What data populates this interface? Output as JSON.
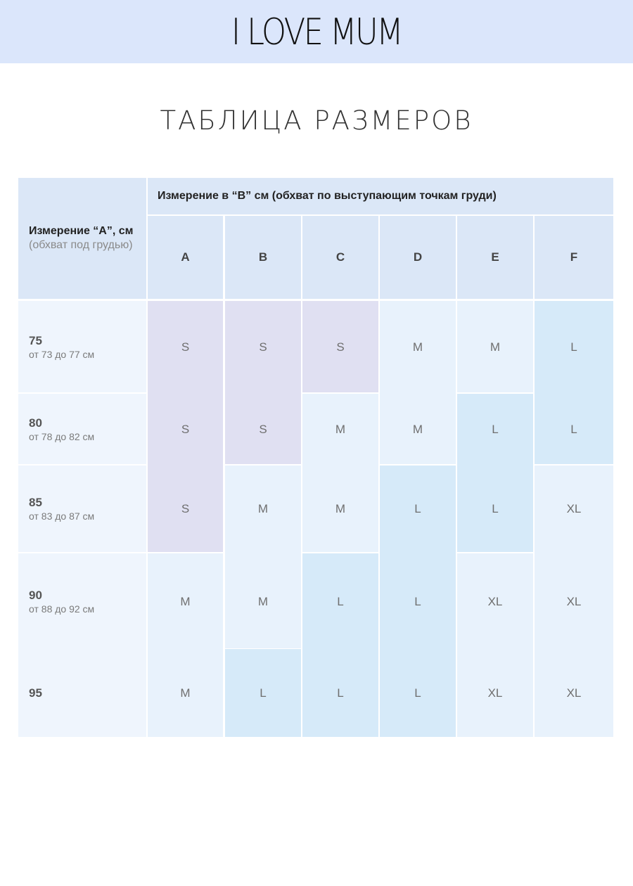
{
  "brand": {
    "logo_text": "I LOVE MUM"
  },
  "page": {
    "title": "ТАБЛИЦА РАЗМЕРОВ"
  },
  "table": {
    "a_header": {
      "title": "Измерение “A”, см",
      "subtitle": "(обхват под грудью)"
    },
    "b_header": "Измерение в “B” см (обхват по выступающим точкам груди)",
    "cup_columns": [
      "A",
      "B",
      "C",
      "D",
      "E",
      "F"
    ],
    "rows": [
      {
        "band": "75",
        "range": "от 73 до 77 см",
        "sizes": [
          "S",
          "S",
          "S",
          "M",
          "M",
          "L"
        ]
      },
      {
        "band": "80",
        "range": "от 78 до 82 см",
        "sizes": [
          "S",
          "S",
          "M",
          "M",
          "L",
          "L"
        ]
      },
      {
        "band": "85",
        "range": "от 83 до 87 см",
        "sizes": [
          "S",
          "M",
          "M",
          "L",
          "L",
          "XL"
        ]
      },
      {
        "band": "90",
        "range": "от 88 до 92 см",
        "sizes": [
          "M",
          "M",
          "L",
          "L",
          "XL",
          "XL"
        ]
      },
      {
        "band": "95",
        "range": "",
        "sizes": [
          "M",
          "L",
          "L",
          "L",
          "XL",
          "XL"
        ]
      }
    ],
    "colors": {
      "header": "#dbe7f7",
      "row_header": "#eff5fd",
      "S": "#e0e0f2",
      "M": "#e8f2fc",
      "L": "#d6eaf9",
      "XL": "#e8f2fc"
    }
  }
}
